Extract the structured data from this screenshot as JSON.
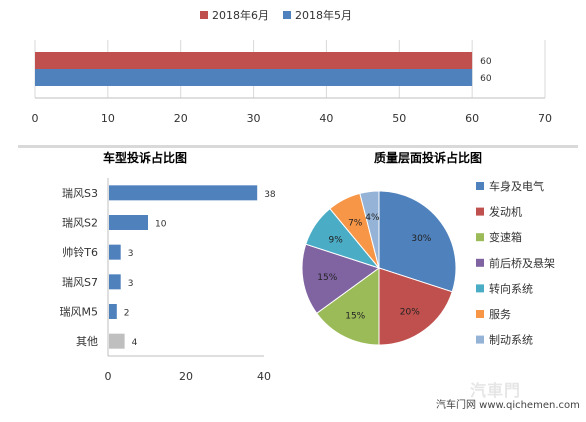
{
  "chart_data": [
    {
      "type": "bar",
      "orientation": "horizontal",
      "categories": [
        ""
      ],
      "series": [
        {
          "name": "2018年6月",
          "values": [
            60
          ],
          "color": "#c0504d"
        },
        {
          "name": "2018年5月",
          "values": [
            60
          ],
          "color": "#4f81bd"
        }
      ],
      "legend_position": "top",
      "xlim": [
        0,
        70
      ],
      "xticks": [
        "0",
        "10",
        "20",
        "30",
        "40",
        "50",
        "60",
        "70"
      ],
      "grid": true,
      "data_labels": [
        "60",
        "60"
      ]
    },
    {
      "type": "bar",
      "orientation": "horizontal",
      "title": "车型投诉占比图",
      "categories": [
        "瑞风S3",
        "瑞风S2",
        "帅铃T6",
        "瑞风S7",
        "瑞风M5",
        "其他"
      ],
      "values": [
        38,
        10,
        3,
        3,
        2,
        4
      ],
      "colors": [
        "#4f81bd",
        "#4f81bd",
        "#4f81bd",
        "#4f81bd",
        "#4f81bd",
        "#bfbfbf"
      ],
      "xlim": [
        0,
        40
      ],
      "xticks": [
        "0",
        "20",
        "40"
      ],
      "grid": false
    },
    {
      "type": "pie",
      "title": "质量层面投诉占比图",
      "labels": [
        "车身及电气",
        "发动机",
        "变速箱",
        "前后桥及悬架",
        "转向系统",
        "服务",
        "制动系统"
      ],
      "values": [
        30,
        20,
        15,
        15,
        9,
        7,
        4
      ],
      "value_labels": [
        "30%",
        "20%",
        "15%",
        "15%",
        "9%",
        "7%",
        "4%"
      ],
      "colors": [
        "#4f81bd",
        "#c0504d",
        "#9bbb59",
        "#8064a2",
        "#4bacc6",
        "#f79646",
        "#95b3d7"
      ],
      "legend_position": "right"
    }
  ],
  "watermark": {
    "text": "汽车门网 www.qichemen.com",
    "logo": "汽車門"
  }
}
